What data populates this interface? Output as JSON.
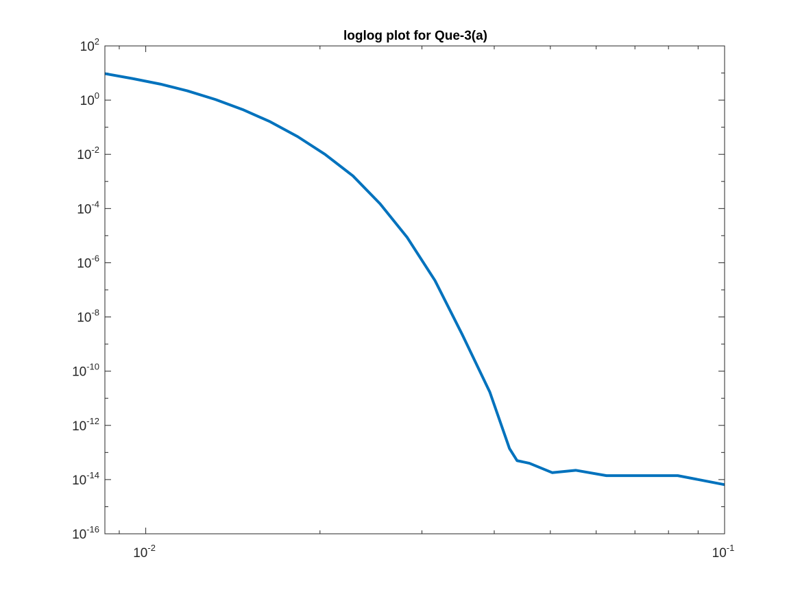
{
  "chart_data": {
    "type": "line",
    "title": "loglog plot for Que-3(a)",
    "xlabel": "",
    "ylabel": "",
    "xscale": "log",
    "yscale": "log",
    "xlim": [
      0.0085,
      0.1
    ],
    "ylim": [
      1e-16,
      100
    ],
    "grid": false,
    "box": true,
    "x_ticks": [
      {
        "value": 0.01,
        "base": "10",
        "exp": "-2"
      },
      {
        "value": 0.1,
        "base": "10",
        "exp": "-1"
      }
    ],
    "y_ticks": [
      {
        "value": 100.0,
        "base": "10",
        "exp": "2"
      },
      {
        "value": 1.0,
        "base": "10",
        "exp": "0"
      },
      {
        "value": 0.01,
        "base": "10",
        "exp": "-2"
      },
      {
        "value": 0.0001,
        "base": "10",
        "exp": "-4"
      },
      {
        "value": 1e-06,
        "base": "10",
        "exp": "-6"
      },
      {
        "value": 1e-08,
        "base": "10",
        "exp": "-8"
      },
      {
        "value": 1e-10,
        "base": "10",
        "exp": "-10"
      },
      {
        "value": 1e-12,
        "base": "10",
        "exp": "-12"
      },
      {
        "value": 1e-14,
        "base": "10",
        "exp": "-14"
      },
      {
        "value": 1e-16,
        "base": "10",
        "exp": "-16"
      }
    ],
    "series": [
      {
        "color": "#0072BD",
        "points": [
          [
            0.0085,
            9.5
          ],
          [
            0.0095,
            6.2
          ],
          [
            0.0106,
            3.9
          ],
          [
            0.0118,
            2.2
          ],
          [
            0.0132,
            1.05
          ],
          [
            0.0147,
            0.45
          ],
          [
            0.0164,
            0.16
          ],
          [
            0.0183,
            0.045
          ],
          [
            0.0204,
            0.01
          ],
          [
            0.0228,
            0.0016
          ],
          [
            0.0254,
            0.00015
          ],
          [
            0.0283,
            8.5e-06
          ],
          [
            0.0316,
            2.2e-07
          ],
          [
            0.0352,
            2.3e-09
          ],
          [
            0.0393,
            1.7e-11
          ],
          [
            0.0425,
            1.4e-13
          ],
          [
            0.0438,
            5e-14
          ],
          [
            0.046,
            4e-14
          ],
          [
            0.0504,
            1.8e-14
          ],
          [
            0.0553,
            2.2e-14
          ],
          [
            0.0625,
            1.4e-14
          ],
          [
            0.0725,
            1.4e-14
          ],
          [
            0.083,
            1.4e-14
          ],
          [
            0.1,
            6.5e-15
          ]
        ]
      }
    ]
  }
}
